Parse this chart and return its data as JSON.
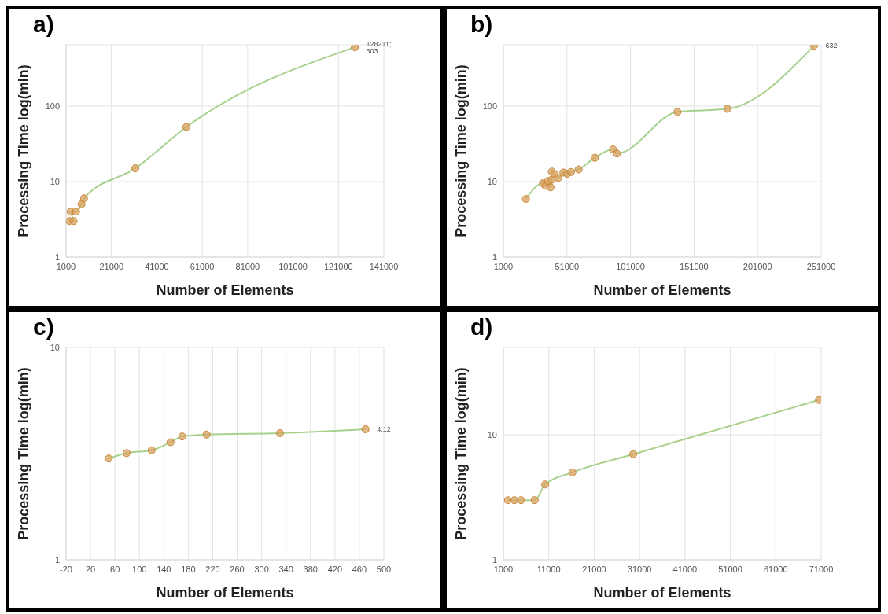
{
  "chart_data": [
    {
      "type": "line",
      "title": "a)",
      "xlabel": "Number of Elements",
      "ylabel": "Processing Time log(min)",
      "log": "y",
      "grid": true,
      "marker": "circle",
      "line_style": "solid",
      "xlim": [
        1000,
        141000
      ],
      "xticks": [
        1000,
        21000,
        41000,
        61000,
        81000,
        101000,
        121000,
        141000
      ],
      "ylim": [
        1,
        650
      ],
      "yticks": [
        1,
        10,
        100
      ],
      "series": [
        {
          "color": "#d9a25f",
          "x": [
            2440,
            4300,
            3000,
            5400,
            7800,
            8900,
            31500,
            54000,
            128211
          ],
          "values": [
            3,
            3,
            4,
            4,
            5,
            6,
            15,
            53,
            603
          ],
          "value_labels": [
            null,
            null,
            null,
            null,
            null,
            null,
            null,
            null,
            "128211; 603"
          ]
        }
      ]
    },
    {
      "type": "line",
      "title": "b)",
      "xlabel": "Number of Elements",
      "ylabel": "Processing Time log(min)",
      "log": "y",
      "grid": true,
      "marker": "circle",
      "line_style": "solid",
      "xlim": [
        1000,
        251000
      ],
      "xticks": [
        1000,
        51000,
        101000,
        151000,
        201000,
        251000
      ],
      "ylim": [
        1,
        650
      ],
      "yticks": [
        1,
        10,
        100
      ],
      "series": [
        {
          "color": "#d9a25f",
          "x": [
            18700,
            32100,
            34100,
            36100,
            38100,
            39100,
            39100,
            41200,
            44200,
            48200,
            51200,
            54200,
            60200,
            72900,
            87300,
            90300,
            138000,
            177300,
            245400
          ],
          "values": [
            5.9,
            9.5,
            8.8,
            10.2,
            8.4,
            10.6,
            13.6,
            12.6,
            11.2,
            13.2,
            12.7,
            13.4,
            14.5,
            20.7,
            26.7,
            23.6,
            84,
            92,
            632
          ],
          "value_labels": [
            null,
            null,
            null,
            null,
            null,
            null,
            null,
            null,
            null,
            null,
            null,
            null,
            null,
            null,
            null,
            null,
            null,
            null,
            "632"
          ]
        }
      ]
    },
    {
      "type": "line",
      "title": "c)",
      "xlabel": "Number of Elements",
      "ylabel": "Processing Time log(min)",
      "log": "y",
      "grid": true,
      "marker": "circle",
      "line_style": "solid",
      "xlim": [
        -20,
        500
      ],
      "xticks": [
        -20,
        20,
        60,
        100,
        140,
        180,
        220,
        260,
        300,
        340,
        380,
        420,
        460,
        500
      ],
      "ylim": [
        1,
        10
      ],
      "yticks": [
        1,
        10
      ],
      "series": [
        {
          "color": "#d9a25f",
          "x": [
            50,
            79,
            120,
            151,
            170,
            210,
            330,
            470
          ],
          "values": [
            3,
            3.18,
            3.28,
            3.58,
            3.81,
            3.89,
            3.95,
            4.12
          ],
          "value_labels": [
            null,
            null,
            null,
            null,
            null,
            null,
            null,
            "4.12"
          ]
        }
      ]
    },
    {
      "type": "line",
      "title": "d)",
      "xlabel": "Number of Elements",
      "ylabel": "Processing Time log(min)",
      "log": "y",
      "grid": true,
      "marker": "circle",
      "line_style": "solid",
      "xlim": [
        1000,
        71000
      ],
      "xticks": [
        1000,
        11000,
        21000,
        31000,
        41000,
        51000,
        61000,
        71000
      ],
      "ylim": [
        1,
        50
      ],
      "yticks": [
        1,
        10
      ],
      "series": [
        {
          "color": "#d9a25f",
          "x": [
            2000,
            3400,
            4900,
            7900,
            10200,
            16200,
            29600,
            70500
          ],
          "values": [
            3,
            3,
            3,
            3,
            4,
            5,
            7,
            19
          ]
        }
      ]
    }
  ]
}
